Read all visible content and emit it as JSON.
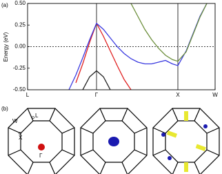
{
  "chart_data": {
    "type": "line",
    "panel_label": "(a)",
    "y_label": "Energy (eV)",
    "x": [
      0.6,
      0.7,
      0.8,
      0.9,
      1.0,
      1.1,
      1.2,
      1.3,
      1.4,
      1.5,
      1.6,
      1.7,
      1.8,
      1.9,
      2.0,
      2.1,
      2.18,
      2.3,
      2.4,
      2.5,
      2.6
    ],
    "series": [
      {
        "color": "#1f1f1f",
        "values": [
          null,
          null,
          -0.5,
          -0.35,
          -0.28,
          -0.35,
          -0.5,
          null,
          null,
          null,
          null,
          null,
          null,
          null,
          null,
          null,
          null,
          null,
          null,
          null,
          null
        ]
      },
      {
        "color": "#e02020",
        "values": [
          null,
          -0.42,
          -0.2,
          0.05,
          0.27,
          0.12,
          -0.05,
          -0.22,
          -0.38,
          -0.5,
          null,
          null,
          null,
          null,
          null,
          null,
          null,
          null,
          null,
          null,
          null
        ]
      },
      {
        "color": "#3a3ae0",
        "values": [
          -0.5,
          -0.33,
          -0.13,
          0.08,
          0.27,
          0.2,
          0.1,
          0.0,
          -0.08,
          -0.14,
          -0.18,
          -0.2,
          -0.2,
          -0.18,
          -0.16,
          -0.2,
          -0.22,
          -0.05,
          0.15,
          0.35,
          0.5
        ]
      },
      {
        "color": "#6b8e3a",
        "values": [
          null,
          null,
          null,
          null,
          null,
          null,
          null,
          null,
          null,
          0.5,
          0.35,
          0.2,
          0.08,
          -0.02,
          -0.1,
          -0.15,
          -0.17,
          -0.06,
          0.14,
          0.34,
          0.5
        ]
      }
    ],
    "xlim": [
      0,
      2.72
    ],
    "xticks": [
      {
        "value": 0,
        "label": "L"
      },
      {
        "value": 1,
        "label": "Γ"
      },
      {
        "value": 2.18,
        "label": "X"
      },
      {
        "value": 2.72,
        "label": "W"
      }
    ],
    "ylim": [
      -0.5,
      0.5
    ],
    "yticks": [
      {
        "value": 0.5,
        "label": "0.50"
      },
      {
        "value": 0.25,
        "label": "0.25"
      },
      {
        "value": 0,
        "label": "0.00"
      },
      {
        "value": -0.25,
        "label": "-0.25"
      },
      {
        "value": -0.5,
        "label": "-0.50"
      }
    ],
    "zero_line": true
  },
  "panel_b": {
    "label": "(b)",
    "points": [
      "W",
      "X",
      "L",
      "Γ"
    ]
  }
}
